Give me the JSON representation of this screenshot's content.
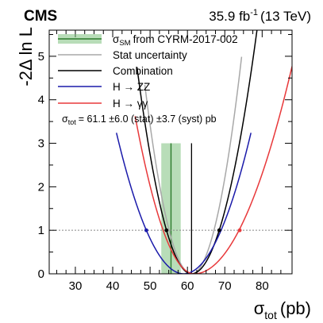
{
  "chart_data": {
    "type": "line",
    "experiment": "CMS",
    "luminosity_base": "35.9 fb",
    "luminosity_exp": "-1",
    "energy": "(13 TeV)",
    "xlabel_main": "σ",
    "xlabel_sub": "tot",
    "xlabel_unit": "(pb)",
    "ylabel": "-2Δ ln L",
    "xlim": [
      23,
      88
    ],
    "ylim": [
      0,
      5.6
    ],
    "x_ticks": [
      30,
      40,
      50,
      60,
      70,
      80
    ],
    "y_ticks": [
      0,
      1,
      2,
      3,
      4,
      5
    ],
    "x_tick_labels": [
      "30",
      "40",
      "50",
      "60",
      "70",
      "80"
    ],
    "y_tick_labels": [
      "0",
      "1",
      "2",
      "3",
      "4",
      "5"
    ],
    "reference_line_y": 1,
    "sm_band": {
      "label_main": "σ",
      "label_sub": "SM",
      "label_rest": "from CYRM-2017-002",
      "central": 55.6,
      "low": 53.0,
      "high": 58.2,
      "color": "#7dc17d",
      "line_color": "#2a7a2a"
    },
    "result": {
      "prefix": "σ",
      "sub": "tot",
      "text": "= 61.1  ±6.0 (stat) ±3.7 (syst)  pb"
    },
    "series": [
      {
        "name": "Stat uncertainty",
        "color": "#a8a8a8",
        "min_x": 61.1,
        "min_y": 0.0,
        "sigma_minus": 6.0,
        "sigma_plus": 6.0,
        "x_range": [
          48.6,
          74.5
        ],
        "markers": []
      },
      {
        "name": "Combination",
        "color": "#000000",
        "min_x": 61.1,
        "min_y": 0.0,
        "sigma_minus": 6.7,
        "sigma_plus": 7.4,
        "x_range": [
          46.5,
          80.0
        ],
        "central_line": true,
        "markers": [
          54.4,
          68.5
        ]
      },
      {
        "name": "H → ZZ",
        "color": "#1a1aaa",
        "min_x": 59.0,
        "min_y": 0.0,
        "sigma_minus": 10.0,
        "sigma_plus": 10.0,
        "x_range": [
          41.0,
          77.0
        ],
        "markers": [
          49.0
        ]
      },
      {
        "name": "H → γγ",
        "color": "#e8383a",
        "min_x": 61.8,
        "min_y": 0.0,
        "sigma_minus": 8.3,
        "sigma_plus": 12.0,
        "x_range": [
          46.0,
          88.0
        ],
        "markers": [
          74.0
        ]
      }
    ]
  }
}
